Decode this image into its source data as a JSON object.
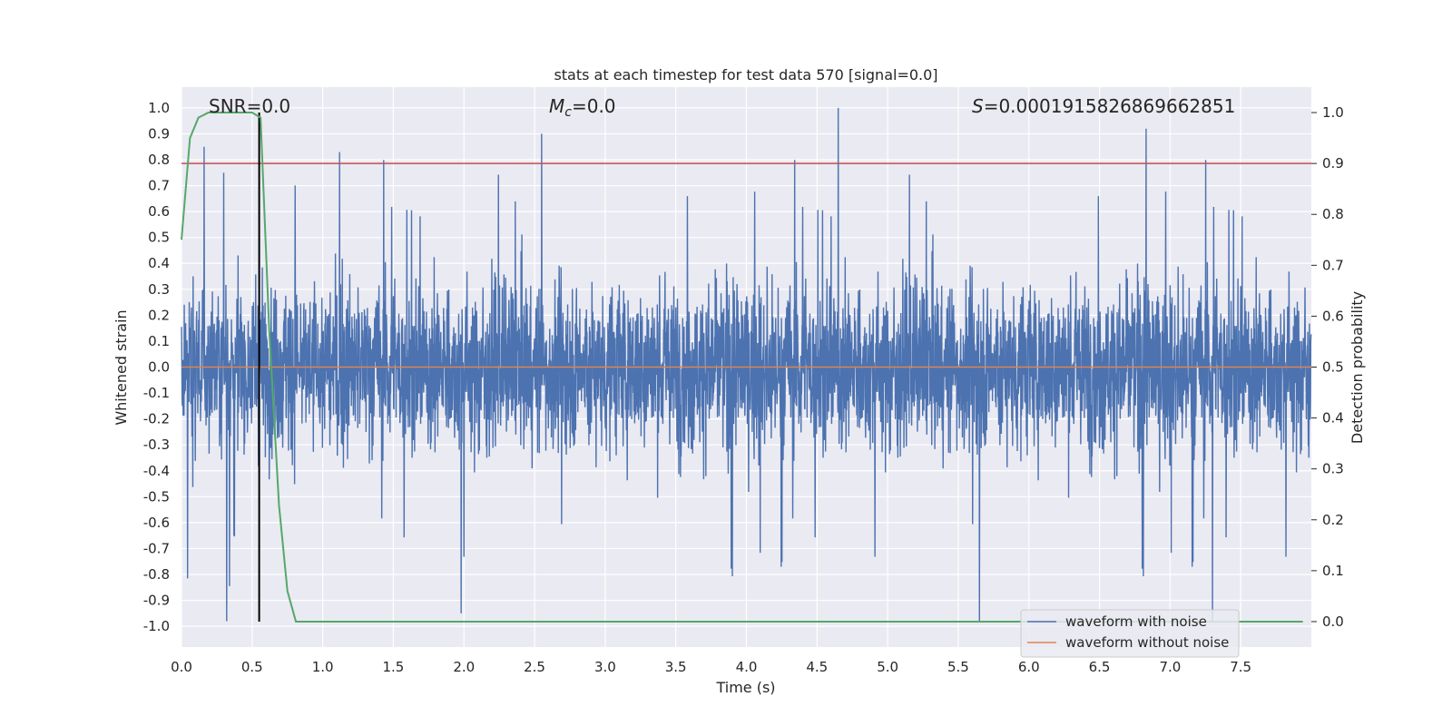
{
  "chart_data": {
    "type": "line",
    "title": "stats at each timestep for test data 570 [signal=0.0]",
    "xlabel": "Time (s)",
    "ylabel_left": "Whitened strain",
    "ylabel_right": "Detection probability",
    "xlim": [
      0.0,
      8.0
    ],
    "ylim_left": [
      -1.08,
      1.08
    ],
    "ylim_right": [
      -0.05,
      1.05
    ],
    "xticks": [
      "0.0",
      "0.5",
      "1.0",
      "1.5",
      "2.0",
      "2.5",
      "3.0",
      "3.5",
      "4.0",
      "4.5",
      "5.0",
      "5.5",
      "6.0",
      "6.5",
      "7.0",
      "7.5"
    ],
    "yticks_left": [
      "1.0",
      "0.9",
      "0.8",
      "0.7",
      "0.6",
      "0.5",
      "0.4",
      "0.3",
      "0.2",
      "0.1",
      "0.0",
      "-0.1",
      "-0.2",
      "-0.3",
      "-0.4",
      "-0.5",
      "-0.6",
      "-0.7",
      "-0.8",
      "-0.9",
      "-1.0"
    ],
    "yticks_right": [
      "1.0",
      "0.9",
      "0.8",
      "0.7",
      "0.6",
      "0.5",
      "0.4",
      "0.3",
      "0.2",
      "0.1",
      "0.0"
    ],
    "annotations": {
      "snr_name": "SNR",
      "snr_value": "=0.0",
      "mc_symbol": "M",
      "mc_subscript": "c",
      "mc_value": "=0.0",
      "s_symbol": "S",
      "s_value": "=0.0001915826869662851"
    },
    "threshold": 0.9,
    "marker_time": 0.55,
    "grid": true,
    "legend_position": "lower right",
    "series": [
      {
        "name": "waveform with noise",
        "axis": "left",
        "color": "#4c72b0",
        "sample_rate_hz": 512,
        "envelope_typical": 0.35,
        "envelope_extreme": [
          -0.98,
          1.0
        ],
        "notable_peaks": [
          {
            "t": 0.16,
            "y": 0.85
          },
          {
            "t": 2.55,
            "y": 0.9
          },
          {
            "t": 4.65,
            "y": 1.0
          },
          {
            "t": 6.83,
            "y": 0.92
          },
          {
            "t": 0.32,
            "y": -0.98
          },
          {
            "t": 5.65,
            "y": -0.98
          },
          {
            "t": 7.3,
            "y": -0.98
          },
          {
            "t": 1.98,
            "y": -0.95
          }
        ]
      },
      {
        "name": "waveform without noise",
        "axis": "left",
        "color": "#dd8452",
        "values_constant": 0.0
      },
      {
        "name": "detection probability",
        "axis": "right",
        "color": "#55a868",
        "x": [
          0.0,
          0.06,
          0.12,
          0.19,
          0.25,
          0.31,
          0.38,
          0.44,
          0.5,
          0.56,
          0.62,
          0.69,
          0.75,
          0.81,
          0.88,
          1.0,
          2.0,
          3.0,
          4.0,
          5.0,
          6.0,
          7.0,
          7.94
        ],
        "y": [
          0.75,
          0.95,
          0.99,
          1.0,
          1.0,
          1.0,
          1.0,
          1.0,
          1.0,
          0.99,
          0.58,
          0.23,
          0.06,
          0.0,
          0.0,
          0.0,
          0.0,
          0.0,
          0.0,
          0.0,
          0.0,
          0.0,
          0.0
        ]
      }
    ],
    "colors": {
      "plot_bg": "#eaeaf2",
      "grid": "#ffffff",
      "threshold_line": "#c44e52",
      "marker_line": "#000000"
    }
  }
}
